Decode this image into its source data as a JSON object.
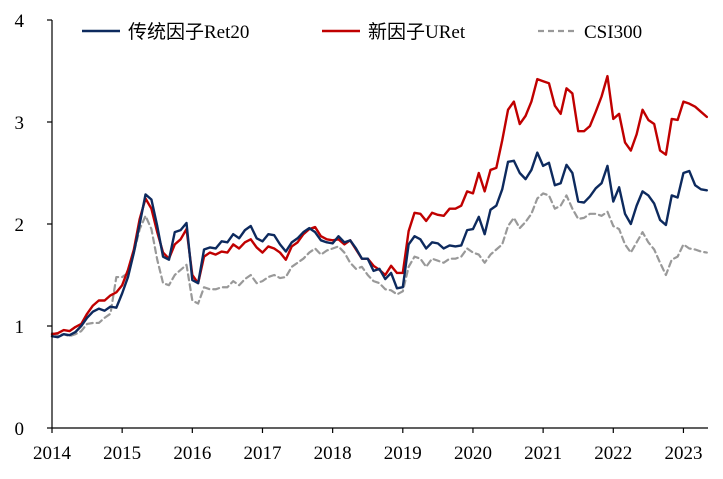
{
  "chart_data": {
    "type": "line",
    "title": "",
    "xlabel": "",
    "ylabel": "",
    "ylim": [
      0,
      4
    ],
    "xlim": [
      2014.0,
      2023.35
    ],
    "yticks": [
      0,
      1,
      2,
      3,
      4
    ],
    "xticks": [
      2014,
      2015,
      2016,
      2017,
      2018,
      2019,
      2020,
      2021,
      2022,
      2023
    ],
    "grid": false,
    "legend": "top",
    "x": [
      2014.0,
      2014.083,
      2014.167,
      2014.25,
      2014.333,
      2014.417,
      2014.5,
      2014.583,
      2014.667,
      2014.75,
      2014.833,
      2014.917,
      2015.0,
      2015.083,
      2015.167,
      2015.25,
      2015.333,
      2015.417,
      2015.5,
      2015.583,
      2015.667,
      2015.75,
      2015.833,
      2015.917,
      2016.0,
      2016.083,
      2016.167,
      2016.25,
      2016.333,
      2016.417,
      2016.5,
      2016.583,
      2016.667,
      2016.75,
      2016.833,
      2016.917,
      2017.0,
      2017.083,
      2017.167,
      2017.25,
      2017.333,
      2017.417,
      2017.5,
      2017.583,
      2017.667,
      2017.75,
      2017.833,
      2017.917,
      2018.0,
      2018.083,
      2018.167,
      2018.25,
      2018.333,
      2018.417,
      2018.5,
      2018.583,
      2018.667,
      2018.75,
      2018.833,
      2018.917,
      2019.0,
      2019.083,
      2019.167,
      2019.25,
      2019.333,
      2019.417,
      2019.5,
      2019.583,
      2019.667,
      2019.75,
      2019.833,
      2019.917,
      2020.0,
      2020.083,
      2020.167,
      2020.25,
      2020.333,
      2020.417,
      2020.5,
      2020.583,
      2020.667,
      2020.75,
      2020.833,
      2020.917,
      2021.0,
      2021.083,
      2021.167,
      2021.25,
      2021.333,
      2021.417,
      2021.5,
      2021.583,
      2021.667,
      2021.75,
      2021.833,
      2021.917,
      2022.0,
      2022.083,
      2022.167,
      2022.25,
      2022.333,
      2022.417,
      2022.5,
      2022.583,
      2022.667,
      2022.75,
      2022.833,
      2022.917,
      2023.0,
      2023.083,
      2023.167,
      2023.25,
      2023.333
    ],
    "series": [
      {
        "name": "传统因子Ret20",
        "color": "#0d2a5e",
        "dash": "solid",
        "values": [
          0.9,
          0.89,
          0.92,
          0.91,
          0.94,
          1.0,
          1.08,
          1.14,
          1.17,
          1.15,
          1.19,
          1.18,
          1.32,
          1.48,
          1.72,
          2.0,
          2.29,
          2.24,
          1.98,
          1.68,
          1.65,
          1.92,
          1.94,
          2.01,
          1.45,
          1.42,
          1.75,
          1.77,
          1.76,
          1.83,
          1.82,
          1.9,
          1.86,
          1.94,
          1.98,
          1.86,
          1.83,
          1.9,
          1.89,
          1.8,
          1.73,
          1.82,
          1.86,
          1.92,
          1.96,
          1.92,
          1.84,
          1.82,
          1.81,
          1.88,
          1.82,
          1.84,
          1.76,
          1.66,
          1.66,
          1.54,
          1.56,
          1.46,
          1.52,
          1.37,
          1.38,
          1.8,
          1.88,
          1.85,
          1.76,
          1.82,
          1.81,
          1.76,
          1.79,
          1.78,
          1.79,
          1.94,
          1.95,
          2.07,
          1.9,
          2.14,
          2.18,
          2.34,
          2.61,
          2.62,
          2.5,
          2.44,
          2.53,
          2.7,
          2.57,
          2.6,
          2.38,
          2.4,
          2.58,
          2.5,
          2.22,
          2.21,
          2.27,
          2.35,
          2.4,
          2.57,
          2.22,
          2.36,
          2.1,
          2.0,
          2.18,
          2.32,
          2.28,
          2.2,
          2.04,
          1.99,
          2.28,
          2.26,
          2.5,
          2.52,
          2.38,
          2.34,
          2.33
        ]
      },
      {
        "name": "新因子URet",
        "color": "#c00000",
        "dash": "solid",
        "values": [
          0.92,
          0.93,
          0.96,
          0.95,
          0.99,
          1.02,
          1.12,
          1.2,
          1.25,
          1.25,
          1.3,
          1.33,
          1.4,
          1.55,
          1.75,
          2.05,
          2.25,
          2.15,
          1.92,
          1.72,
          1.66,
          1.8,
          1.85,
          1.95,
          1.5,
          1.42,
          1.68,
          1.72,
          1.7,
          1.73,
          1.72,
          1.8,
          1.76,
          1.82,
          1.85,
          1.77,
          1.72,
          1.78,
          1.76,
          1.72,
          1.65,
          1.78,
          1.82,
          1.9,
          1.95,
          1.97,
          1.88,
          1.85,
          1.84,
          1.85,
          1.8,
          1.84,
          1.75,
          1.66,
          1.66,
          1.59,
          1.55,
          1.5,
          1.59,
          1.52,
          1.52,
          1.93,
          2.11,
          2.1,
          2.03,
          2.11,
          2.09,
          2.08,
          2.15,
          2.15,
          2.18,
          2.32,
          2.3,
          2.5,
          2.32,
          2.53,
          2.55,
          2.82,
          3.12,
          3.2,
          2.98,
          3.06,
          3.2,
          3.42,
          3.4,
          3.38,
          3.16,
          3.08,
          3.33,
          3.28,
          2.91,
          2.91,
          2.96,
          3.1,
          3.25,
          3.45,
          3.03,
          3.08,
          2.8,
          2.72,
          2.88,
          3.12,
          3.02,
          2.98,
          2.72,
          2.68,
          3.03,
          3.02,
          3.2,
          3.18,
          3.15,
          3.1,
          3.05
        ]
      },
      {
        "name": "CSI300",
        "color": "#999999",
        "dash": "dashed",
        "values": [
          0.93,
          0.91,
          0.92,
          0.9,
          0.92,
          0.95,
          1.02,
          1.03,
          1.03,
          1.08,
          1.12,
          1.48,
          1.48,
          1.52,
          1.72,
          1.95,
          2.08,
          1.95,
          1.65,
          1.42,
          1.4,
          1.5,
          1.55,
          1.6,
          1.25,
          1.22,
          1.38,
          1.36,
          1.36,
          1.38,
          1.38,
          1.44,
          1.4,
          1.46,
          1.5,
          1.42,
          1.44,
          1.48,
          1.5,
          1.47,
          1.48,
          1.58,
          1.62,
          1.66,
          1.72,
          1.76,
          1.7,
          1.74,
          1.76,
          1.78,
          1.72,
          1.62,
          1.56,
          1.58,
          1.5,
          1.44,
          1.42,
          1.36,
          1.35,
          1.31,
          1.34,
          1.58,
          1.68,
          1.66,
          1.58,
          1.66,
          1.64,
          1.62,
          1.66,
          1.66,
          1.68,
          1.76,
          1.72,
          1.7,
          1.62,
          1.7,
          1.75,
          1.8,
          1.98,
          2.06,
          1.96,
          2.02,
          2.1,
          2.25,
          2.3,
          2.28,
          2.15,
          2.18,
          2.28,
          2.15,
          2.05,
          2.06,
          2.1,
          2.1,
          2.08,
          2.12,
          1.98,
          1.95,
          1.8,
          1.72,
          1.82,
          1.92,
          1.82,
          1.75,
          1.62,
          1.5,
          1.65,
          1.68,
          1.8,
          1.76,
          1.75,
          1.73,
          1.72
        ]
      }
    ]
  }
}
